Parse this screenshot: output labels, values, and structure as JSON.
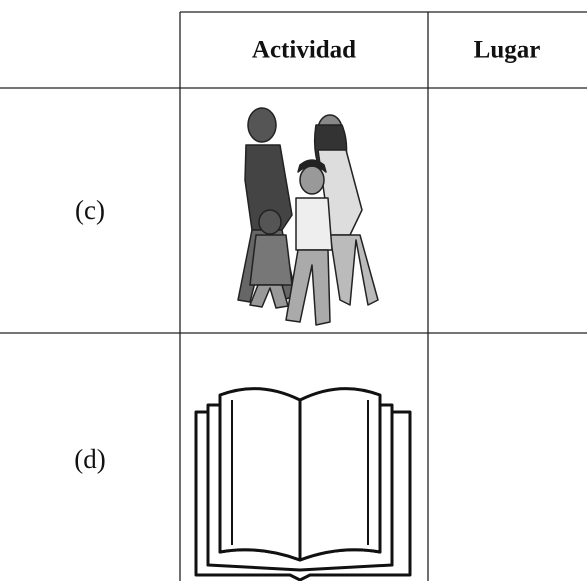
{
  "table": {
    "columns": [
      "Actividad",
      "Lugar"
    ],
    "rows": [
      {
        "label": "(c)"
      },
      {
        "label": "(d)"
      }
    ]
  }
}
